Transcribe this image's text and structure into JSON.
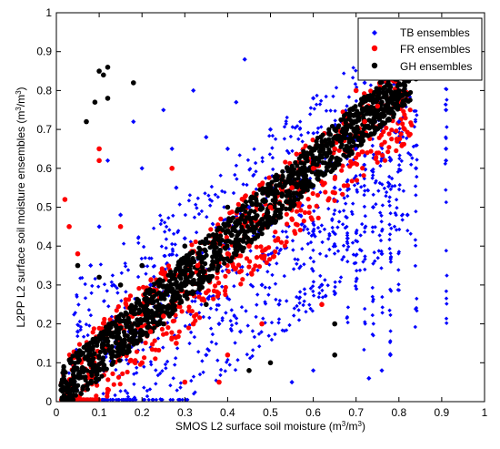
{
  "chart_data": {
    "type": "scatter",
    "title": "",
    "xlabel": {
      "main": "SMOS L2 surface soil moisture (m",
      "sup": "3",
      "mid": "/m",
      "sup2": "3",
      "end": ")"
    },
    "ylabel": {
      "main": "L2PP L2 surface soil moisture ensembles  (m",
      "sup": "3",
      "mid": "/m",
      "sup2": "3",
      "end": ")"
    },
    "xlim": [
      0,
      1
    ],
    "ylim": [
      0,
      1
    ],
    "xticks": [
      "0",
      "0.1",
      "0.2",
      "0.3",
      "0.4",
      "0.5",
      "0.6",
      "0.7",
      "0.8",
      "0.9",
      "1"
    ],
    "yticks": [
      "0",
      "0.1",
      "0.2",
      "0.3",
      "0.4",
      "0.5",
      "0.6",
      "0.7",
      "0.8",
      "0.9",
      "1"
    ],
    "grid": false,
    "legend_position": "top-right",
    "series": [
      {
        "name": "TB ensembles",
        "color": "#0000ff",
        "marker": "diamond",
        "points": [
          [
            0.05,
            0.18
          ],
          [
            0.08,
            0.35
          ],
          [
            0.1,
            0.45
          ],
          [
            0.12,
            0.62
          ],
          [
            0.15,
            0.48
          ],
          [
            0.18,
            0.72
          ],
          [
            0.2,
            0.6
          ],
          [
            0.22,
            0.3
          ],
          [
            0.25,
            0.75
          ],
          [
            0.28,
            0.55
          ],
          [
            0.3,
            0.42
          ],
          [
            0.32,
            0.8
          ],
          [
            0.35,
            0.68
          ],
          [
            0.38,
            0.2
          ],
          [
            0.4,
            0.65
          ],
          [
            0.42,
            0.77
          ],
          [
            0.44,
            0.88
          ],
          [
            0.45,
            0.5
          ],
          [
            0.48,
            0.3
          ],
          [
            0.5,
            0.7
          ],
          [
            0.52,
            0.25
          ],
          [
            0.55,
            0.6
          ],
          [
            0.58,
            0.45
          ],
          [
            0.6,
            0.78
          ],
          [
            0.62,
            0.3
          ],
          [
            0.65,
            0.55
          ],
          [
            0.68,
            0.42
          ],
          [
            0.7,
            0.65
          ],
          [
            0.72,
            0.82
          ],
          [
            0.74,
            0.5
          ],
          [
            0.76,
            0.38
          ],
          [
            0.78,
            0.62
          ],
          [
            0.8,
            0.72
          ],
          [
            0.82,
            0.48
          ],
          [
            0.84,
            0.6
          ],
          [
            0.91,
            0.65
          ],
          [
            0.91,
            0.75
          ],
          [
            0.91,
            0.62
          ],
          [
            0.73,
            0.06
          ],
          [
            0.76,
            0.08
          ],
          [
            0.78,
            0.12
          ],
          [
            0.6,
            0.08
          ],
          [
            0.35,
            0.12
          ],
          [
            0.55,
            0.05
          ],
          [
            0.43,
            0.18
          ],
          [
            0.33,
            0.28
          ],
          [
            0.27,
            0.65
          ],
          [
            0.6,
            0.65
          ]
        ]
      },
      {
        "name": "FR ensembles",
        "color": "#ff0000",
        "marker": "circle",
        "points": [
          [
            0.02,
            0.52
          ],
          [
            0.03,
            0.45
          ],
          [
            0.05,
            0.38
          ],
          [
            0.1,
            0.62
          ],
          [
            0.1,
            0.65
          ],
          [
            0.15,
            0.45
          ],
          [
            0.2,
            0.1
          ],
          [
            0.22,
            0.18
          ],
          [
            0.25,
            0.22
          ],
          [
            0.28,
            0.15
          ],
          [
            0.3,
            0.05
          ],
          [
            0.32,
            0.2
          ],
          [
            0.35,
            0.28
          ],
          [
            0.4,
            0.38
          ],
          [
            0.45,
            0.4
          ],
          [
            0.5,
            0.5
          ],
          [
            0.55,
            0.55
          ],
          [
            0.6,
            0.6
          ],
          [
            0.65,
            0.65
          ],
          [
            0.7,
            0.8
          ],
          [
            0.72,
            0.72
          ],
          [
            0.75,
            0.76
          ],
          [
            0.4,
            0.12
          ],
          [
            0.38,
            0.05
          ],
          [
            0.33,
            0.35
          ],
          [
            0.48,
            0.2
          ],
          [
            0.62,
            0.25
          ],
          [
            0.27,
            0.6
          ]
        ]
      },
      {
        "name": "GH ensembles",
        "color": "#000000",
        "marker": "circle",
        "points": [
          [
            0.1,
            0.85
          ],
          [
            0.11,
            0.84
          ],
          [
            0.12,
            0.86
          ],
          [
            0.09,
            0.77
          ],
          [
            0.07,
            0.72
          ],
          [
            0.12,
            0.78
          ],
          [
            0.18,
            0.82
          ],
          [
            0.05,
            0.35
          ],
          [
            0.1,
            0.32
          ],
          [
            0.15,
            0.3
          ],
          [
            0.2,
            0.35
          ],
          [
            0.3,
            0.4
          ],
          [
            0.4,
            0.5
          ],
          [
            0.5,
            0.55
          ],
          [
            0.55,
            0.6
          ],
          [
            0.6,
            0.65
          ],
          [
            0.65,
            0.7
          ],
          [
            0.7,
            0.72
          ],
          [
            0.72,
            0.75
          ],
          [
            0.76,
            0.77
          ],
          [
            0.8,
            0.8
          ],
          [
            0.84,
            0.83
          ],
          [
            0.65,
            0.12
          ],
          [
            0.65,
            0.2
          ],
          [
            0.5,
            0.1
          ],
          [
            0.45,
            0.08
          ],
          [
            0.35,
            0.25
          ],
          [
            0.25,
            0.2
          ]
        ]
      }
    ]
  }
}
